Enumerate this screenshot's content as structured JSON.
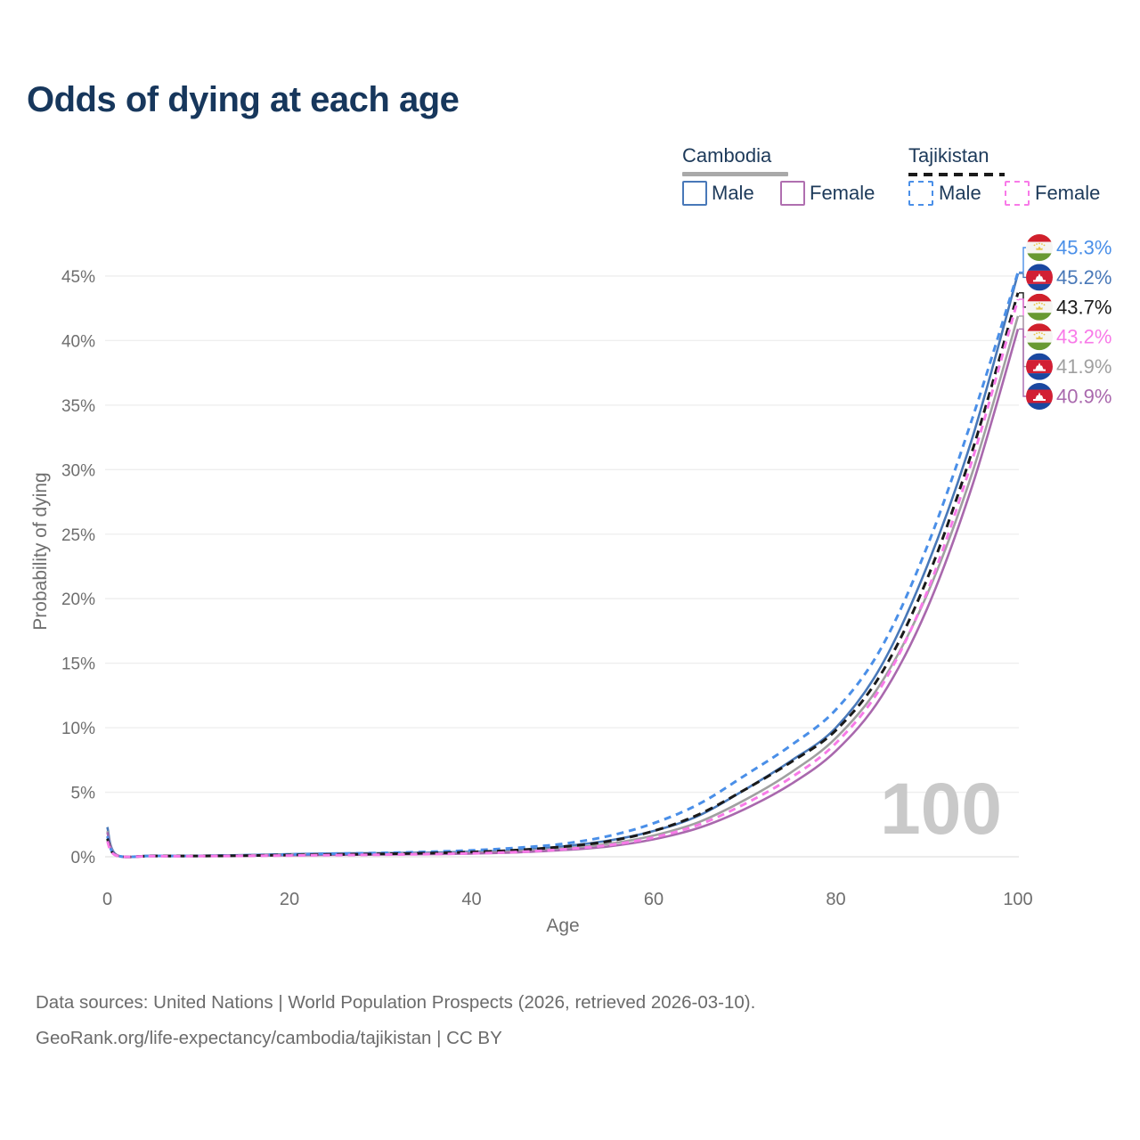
{
  "title": "Odds of dying at each age",
  "legend": {
    "groups": [
      {
        "country": "Cambodia",
        "line_style": "solid",
        "underline_color": "#a9a9a9",
        "items": [
          {
            "label": "Male",
            "color": "#4878b8"
          },
          {
            "label": "Female",
            "color": "#b06fb0"
          }
        ]
      },
      {
        "country": "Tajikistan",
        "line_style": "dashed",
        "underline_color": "#1a1a1a",
        "items": [
          {
            "label": "Male",
            "color": "#4a8fe8"
          },
          {
            "label": "Female",
            "color": "#f87ae8"
          }
        ]
      }
    ]
  },
  "watermark": "100",
  "footer": {
    "line1": "Data sources: United Nations | World Population Prospects (2026, retrieved 2026-03-10).",
    "line2": "GeoRank.org/life-expectancy/cambodia/tajikistan | CC BY"
  },
  "chart_data": {
    "type": "line",
    "title": "Odds of dying at each age",
    "xlabel": "Age",
    "ylabel": "Probability of dying",
    "xlim": [
      0,
      100
    ],
    "ylim_pct": [
      0,
      45
    ],
    "x_ticks": [
      0,
      20,
      40,
      60,
      80,
      100
    ],
    "y_ticks_pct": [
      0,
      5,
      10,
      15,
      20,
      25,
      30,
      35,
      40,
      45
    ],
    "grid": true,
    "legend_position": "top-right",
    "ages": [
      0,
      1,
      5,
      10,
      15,
      20,
      25,
      30,
      35,
      40,
      45,
      50,
      55,
      60,
      65,
      70,
      75,
      80,
      85,
      90,
      95,
      100
    ],
    "series": [
      {
        "name": "Tajikistan Male",
        "country": "Tajikistan",
        "sex": "male",
        "color": "#4a8fe8",
        "dash": true,
        "end_label": "45.3%",
        "flag": "tajikistan",
        "values_pct": [
          1.6,
          0.12,
          0.07,
          0.07,
          0.11,
          0.18,
          0.24,
          0.3,
          0.38,
          0.5,
          0.7,
          1.0,
          1.6,
          2.6,
          4.1,
          6.3,
          8.6,
          11.4,
          16.2,
          24.0,
          34.0,
          45.3
        ]
      },
      {
        "name": "Cambodia Male",
        "country": "Cambodia",
        "sex": "male",
        "color": "#4878b8",
        "dash": false,
        "end_label": "45.2%",
        "flag": "cambodia",
        "values_pct": [
          2.3,
          0.16,
          0.09,
          0.08,
          0.13,
          0.21,
          0.26,
          0.28,
          0.32,
          0.39,
          0.52,
          0.8,
          1.25,
          2.0,
          3.2,
          5.2,
          7.4,
          10.0,
          14.8,
          22.5,
          32.5,
          45.2
        ]
      },
      {
        "name": "Tajikistan",
        "country": "Tajikistan",
        "sex": "both",
        "color": "#1a1a1a",
        "dash": true,
        "end_label": "43.7%",
        "flag": "tajikistan",
        "values_pct": [
          1.4,
          0.1,
          0.06,
          0.06,
          0.09,
          0.14,
          0.18,
          0.22,
          0.28,
          0.37,
          0.52,
          0.78,
          1.2,
          2.0,
          3.3,
          5.2,
          7.3,
          9.8,
          14.2,
          21.5,
          31.5,
          43.7
        ]
      },
      {
        "name": "Tajikistan Female",
        "country": "Tajikistan",
        "sex": "female",
        "color": "#f87ae8",
        "dash": true,
        "end_label": "43.2%",
        "flag": "tajikistan",
        "values_pct": [
          1.2,
          0.09,
          0.05,
          0.05,
          0.07,
          0.1,
          0.13,
          0.16,
          0.2,
          0.26,
          0.37,
          0.57,
          0.9,
          1.5,
          2.5,
          4.1,
          6.1,
          8.8,
          13.2,
          20.5,
          30.8,
          43.2
        ]
      },
      {
        "name": "Cambodia",
        "country": "Cambodia",
        "sex": "both",
        "color": "#a0a0a0",
        "dash": false,
        "end_label": "41.9%",
        "flag": "cambodia",
        "values_pct": [
          2.0,
          0.14,
          0.08,
          0.07,
          0.11,
          0.17,
          0.21,
          0.23,
          0.26,
          0.32,
          0.43,
          0.65,
          1.0,
          1.65,
          2.7,
          4.4,
          6.5,
          9.2,
          13.5,
          20.3,
          29.8,
          41.9
        ]
      },
      {
        "name": "Cambodia Female",
        "country": "Cambodia",
        "sex": "female",
        "color": "#a968ad",
        "dash": false,
        "end_label": "40.9%",
        "flag": "cambodia",
        "values_pct": [
          1.9,
          0.13,
          0.07,
          0.06,
          0.08,
          0.12,
          0.15,
          0.17,
          0.2,
          0.25,
          0.34,
          0.52,
          0.8,
          1.35,
          2.25,
          3.7,
          5.6,
          8.2,
          12.4,
          19.2,
          28.8,
          40.9
        ]
      }
    ],
    "flag_colors": {
      "tajikistan": {
        "top": "#d0202c",
        "middle": "#f5f5f2",
        "bottom": "#689932",
        "emblem": "#e8c54a"
      },
      "cambodia": {
        "top": "#1a47a0",
        "middle": "#d21f34",
        "bottom": "#1a47a0",
        "emblem": "#ffffff"
      }
    }
  }
}
